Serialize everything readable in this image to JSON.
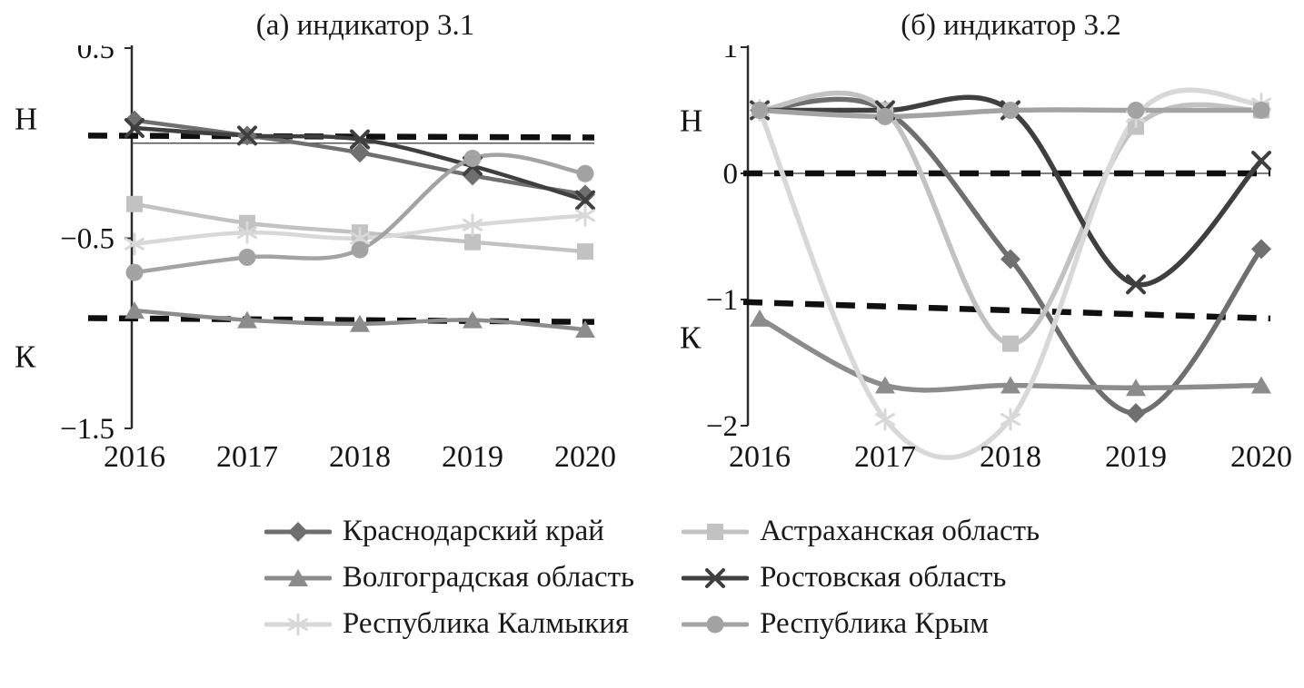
{
  "figure": {
    "background": "#ffffff",
    "threshold_color": "#101010"
  },
  "series_styles": [
    {
      "label": "Краснодарский край",
      "marker": "diamond",
      "color": "#6f6f6f"
    },
    {
      "label": "Астраханская область",
      "marker": "square",
      "color": "#c2c2c2"
    },
    {
      "label": "Волгоградская область",
      "marker": "triangle",
      "color": "#8c8c8c"
    },
    {
      "label": "Ростовская область",
      "marker": "x",
      "color": "#3f3f3f"
    },
    {
      "label": "Республика Калмыкия",
      "marker": "asterisk",
      "color": "#d8d8d8"
    },
    {
      "label": "Республика Крым",
      "marker": "circle",
      "color": "#a3a3a3"
    }
  ],
  "chart_data": [
    {
      "type": "line",
      "title": "(а) индикатор 3.1",
      "x": [
        "2016",
        "2017",
        "2018",
        "2019",
        "2020"
      ],
      "ylim": [
        -1.5,
        0.5
      ],
      "yticks": [
        {
          "v": 0.5,
          "label": "0.5"
        },
        {
          "v": -0.5,
          "label": "−0.5"
        },
        {
          "v": -1.5,
          "label": "−1.5"
        }
      ],
      "zero_line": 0,
      "upper_threshold": {
        "label": "Н",
        "start": 0.04,
        "end": 0.03,
        "label_v": 0.13
      },
      "lower_threshold": {
        "label": "К",
        "start": -0.92,
        "end": -0.94,
        "label_v": -1.12
      },
      "series": [
        {
          "name": "Краснодарский край",
          "values": [
            0.12,
            0.04,
            -0.05,
            -0.17,
            -0.27
          ]
        },
        {
          "name": "Астраханская область",
          "values": [
            -0.32,
            -0.42,
            -0.47,
            -0.52,
            -0.57
          ]
        },
        {
          "name": "Волгоградская область",
          "values": [
            -0.88,
            -0.93,
            -0.95,
            -0.93,
            -0.98
          ]
        },
        {
          "name": "Ростовская область",
          "values": [
            0.08,
            0.04,
            0.02,
            -0.12,
            -0.3
          ]
        },
        {
          "name": "Республика Калмыкия",
          "values": [
            -0.53,
            -0.47,
            -0.5,
            -0.43,
            -0.38
          ]
        },
        {
          "name": "Республика Крым",
          "values": [
            -0.68,
            -0.6,
            -0.56,
            -0.08,
            -0.16
          ]
        }
      ]
    },
    {
      "type": "line",
      "title": "(б) индикатор 3.2",
      "x": [
        "2016",
        "2017",
        "2018",
        "2019",
        "2020"
      ],
      "ylim": [
        -2,
        1
      ],
      "yticks": [
        {
          "v": 1,
          "label": "1"
        },
        {
          "v": 0,
          "label": "0"
        },
        {
          "v": -1,
          "label": "−1"
        },
        {
          "v": -2,
          "label": "−2"
        }
      ],
      "zero_line": 0,
      "upper_threshold": {
        "label": "Н",
        "start": 0,
        "end": 0,
        "label_v": 0.42
      },
      "lower_threshold": {
        "label": "К",
        "start": -1.02,
        "end": -1.15,
        "label_v": -1.3
      },
      "series": [
        {
          "name": "Краснодарский край",
          "values": [
            0.5,
            0.5,
            -0.68,
            -1.9,
            -0.6
          ]
        },
        {
          "name": "Астраханская область",
          "values": [
            0.5,
            0.5,
            -1.35,
            0.37,
            0.5
          ]
        },
        {
          "name": "Волгоградская область",
          "values": [
            -1.15,
            -1.68,
            -1.68,
            -1.7,
            -1.68
          ]
        },
        {
          "name": "Ростовская область",
          "values": [
            0.5,
            0.5,
            0.5,
            -0.88,
            0.1
          ]
        },
        {
          "name": "Республика Калмыкия",
          "values": [
            0.5,
            -1.95,
            -1.95,
            0.45,
            0.55
          ]
        },
        {
          "name": "Республика Крым",
          "values": [
            0.5,
            0.45,
            0.5,
            0.5,
            0.5
          ]
        }
      ]
    }
  ],
  "legend": {
    "order": [
      0,
      1,
      2,
      3,
      4,
      5
    ]
  }
}
